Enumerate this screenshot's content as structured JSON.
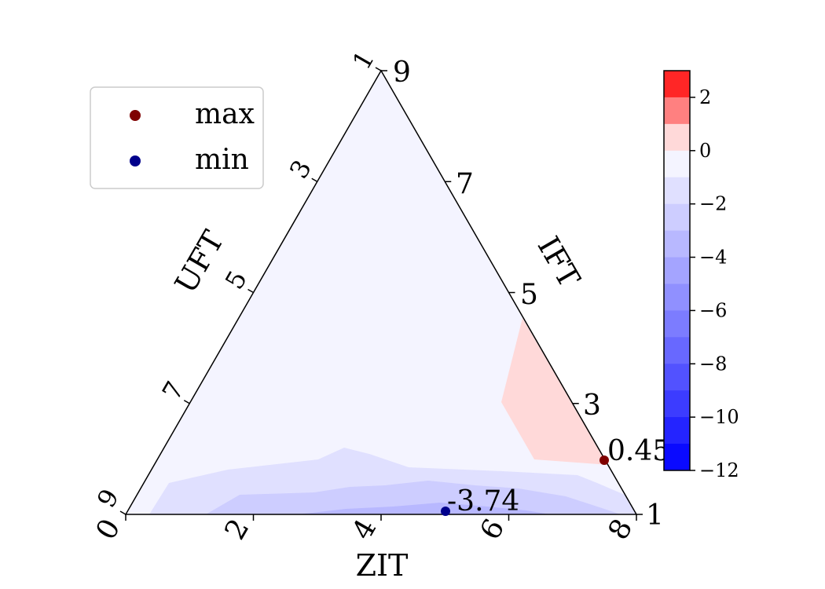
{
  "chart_data": {
    "type": "heatmap",
    "subtype": "ternary-contour",
    "axes": {
      "bottom": {
        "label": "ZIT",
        "ticks": [
          "0",
          "2",
          "4",
          "6",
          "8"
        ]
      },
      "left": {
        "label": "UFT",
        "ticks": [
          "9",
          "7",
          "5",
          "3",
          "1"
        ]
      },
      "right": {
        "label": "IFT",
        "ticks": [
          "1",
          "3",
          "5",
          "7",
          "9"
        ]
      }
    },
    "legend": {
      "placement": "top-left",
      "entries": [
        {
          "label": "max",
          "color": "#7f0000"
        },
        {
          "label": "min",
          "color": "#00008b"
        }
      ]
    },
    "extrema": {
      "max": {
        "label": "0.45",
        "value": 0.45,
        "color": "#7f0000"
      },
      "min": {
        "label": "-3.74",
        "value": -3.74,
        "color": "#00008b"
      }
    },
    "colorbar": {
      "range": [
        -12,
        3
      ],
      "tick_labels": [
        "2",
        "0",
        "−2",
        "−4",
        "−6",
        "−8",
        "−10",
        "−12"
      ],
      "levels": [
        {
          "from": 2.0,
          "to": 3.0,
          "color": "#ff2626"
        },
        {
          "from": 1.0,
          "to": 2.0,
          "color": "#ff8080"
        },
        {
          "from": 0.0,
          "to": 1.0,
          "color": "#ffd9d9"
        },
        {
          "from": -1.0,
          "to": 0.0,
          "color": "#f4f4ff"
        },
        {
          "from": -2.0,
          "to": -1.0,
          "color": "#e0e0ff"
        },
        {
          "from": -3.0,
          "to": -2.0,
          "color": "#cdcdff"
        },
        {
          "from": -4.0,
          "to": -3.0,
          "color": "#b8b8ff"
        },
        {
          "from": -5.0,
          "to": -4.0,
          "color": "#a4a4ff"
        },
        {
          "from": -6.0,
          "to": -5.0,
          "color": "#9090ff"
        },
        {
          "from": -7.0,
          "to": -6.0,
          "color": "#7c7cff"
        },
        {
          "from": -8.0,
          "to": -7.0,
          "color": "#6868ff"
        },
        {
          "from": -9.0,
          "to": -8.0,
          "color": "#5252ff"
        },
        {
          "from": -10.0,
          "to": -9.0,
          "color": "#3c3cff"
        },
        {
          "from": -11.0,
          "to": -10.0,
          "color": "#2424ff"
        },
        {
          "from": -12.0,
          "to": -11.0,
          "color": "#0a0aff"
        }
      ]
    }
  }
}
